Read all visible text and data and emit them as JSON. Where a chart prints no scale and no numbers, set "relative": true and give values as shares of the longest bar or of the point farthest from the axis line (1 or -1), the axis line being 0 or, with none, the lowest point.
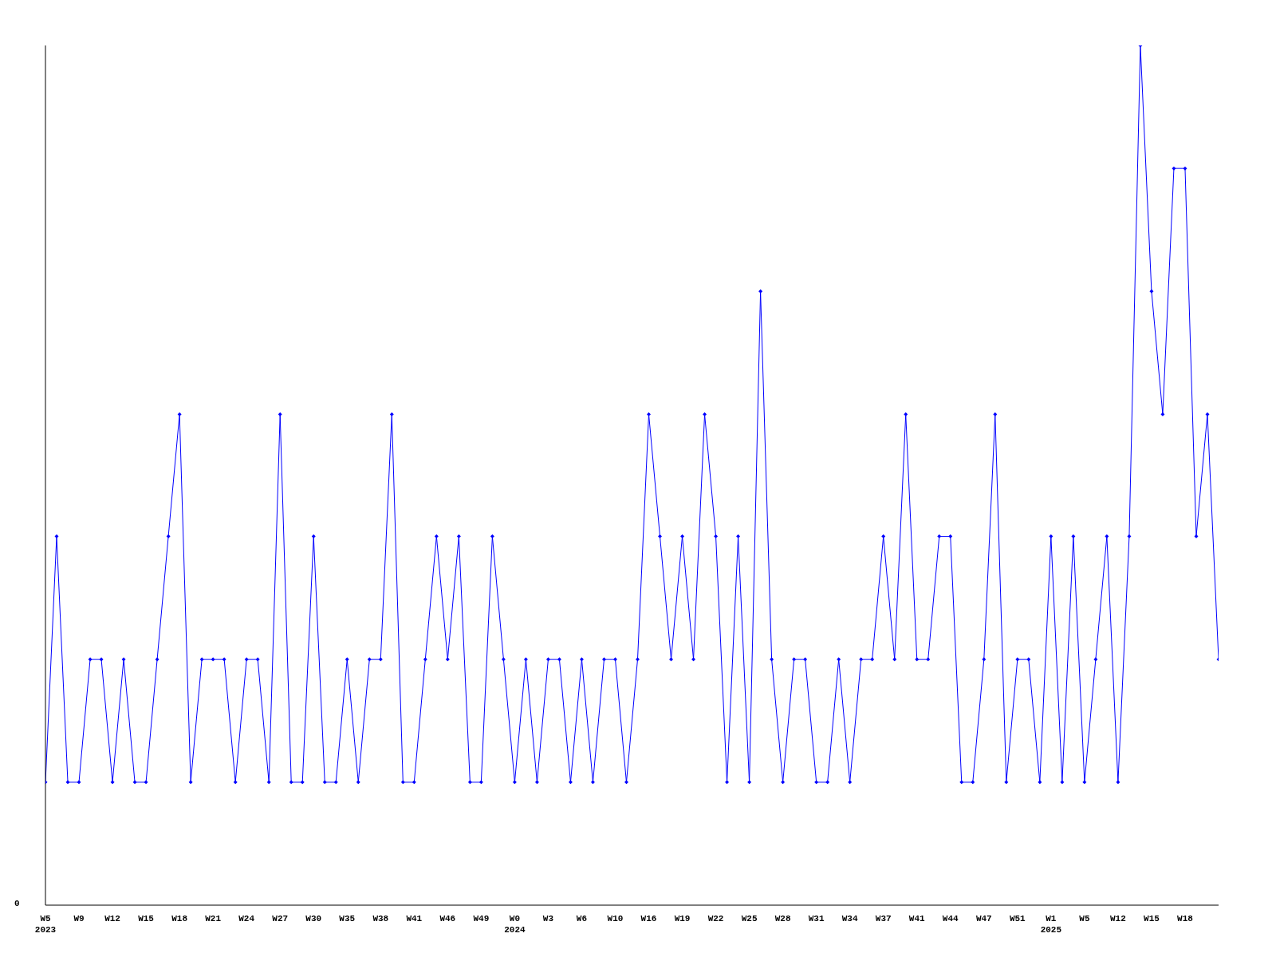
{
  "chart_data": {
    "type": "line",
    "relative": true,
    "marker": "diamond",
    "grid": false,
    "legend": false,
    "annotations": [
      "0"
    ],
    "categories": [
      "W5\n2023",
      null,
      null,
      "W9",
      null,
      null,
      "W12",
      null,
      null,
      "W15",
      null,
      null,
      "W18",
      null,
      null,
      "W21",
      null,
      null,
      "W24",
      null,
      null,
      "W27",
      null,
      null,
      "W30",
      null,
      null,
      "W35",
      null,
      null,
      "W38",
      null,
      null,
      "W41",
      null,
      null,
      "W46",
      null,
      null,
      "W49",
      null,
      null,
      "W0\n2024",
      null,
      null,
      "W3",
      null,
      null,
      "W6",
      null,
      null,
      "W10",
      null,
      null,
      "W16",
      null,
      null,
      "W19",
      null,
      null,
      "W22",
      null,
      null,
      "W25",
      null,
      null,
      "W28",
      null,
      null,
      "W31",
      null,
      null,
      "W34",
      null,
      null,
      "W37",
      null,
      null,
      "W41",
      null,
      null,
      "W44",
      null,
      null,
      "W47",
      null,
      null,
      "W51",
      null,
      null,
      "W1\n2025",
      null,
      null,
      "W5",
      null,
      null,
      "W12",
      null,
      null,
      "W15",
      null,
      null,
      "W18",
      null,
      null,
      null
    ],
    "series": [
      {
        "color": "#0000ff",
        "values": [
          0.143,
          0.429,
          0.143,
          0.143,
          0.286,
          0.286,
          0.143,
          0.286,
          0.143,
          0.143,
          0.286,
          0.429,
          0.571,
          0.143,
          0.286,
          0.286,
          0.286,
          0.143,
          0.286,
          0.286,
          0.143,
          0.571,
          0.143,
          0.143,
          0.429,
          0.143,
          0.143,
          0.286,
          0.143,
          0.286,
          0.286,
          0.571,
          0.143,
          0.143,
          0.286,
          0.429,
          0.286,
          0.429,
          0.143,
          0.143,
          0.429,
          0.286,
          0.143,
          0.286,
          0.143,
          0.286,
          0.286,
          0.143,
          0.286,
          0.143,
          0.286,
          0.286,
          0.143,
          0.286,
          0.571,
          0.429,
          0.286,
          0.429,
          0.286,
          0.571,
          0.429,
          0.143,
          0.429,
          0.143,
          0.714,
          0.286,
          0.143,
          0.286,
          0.286,
          0.143,
          0.143,
          0.286,
          0.143,
          0.286,
          0.286,
          0.429,
          0.286,
          0.571,
          0.286,
          0.286,
          0.429,
          0.429,
          0.143,
          0.143,
          0.286,
          0.571,
          0.143,
          0.286,
          0.286,
          0.143,
          0.429,
          0.143,
          0.429,
          0.143,
          0.286,
          0.429,
          0.143,
          0.429,
          1,
          0.714,
          0.571,
          0.857,
          0.857,
          0.429,
          0.571,
          0.286
        ]
      }
    ]
  }
}
